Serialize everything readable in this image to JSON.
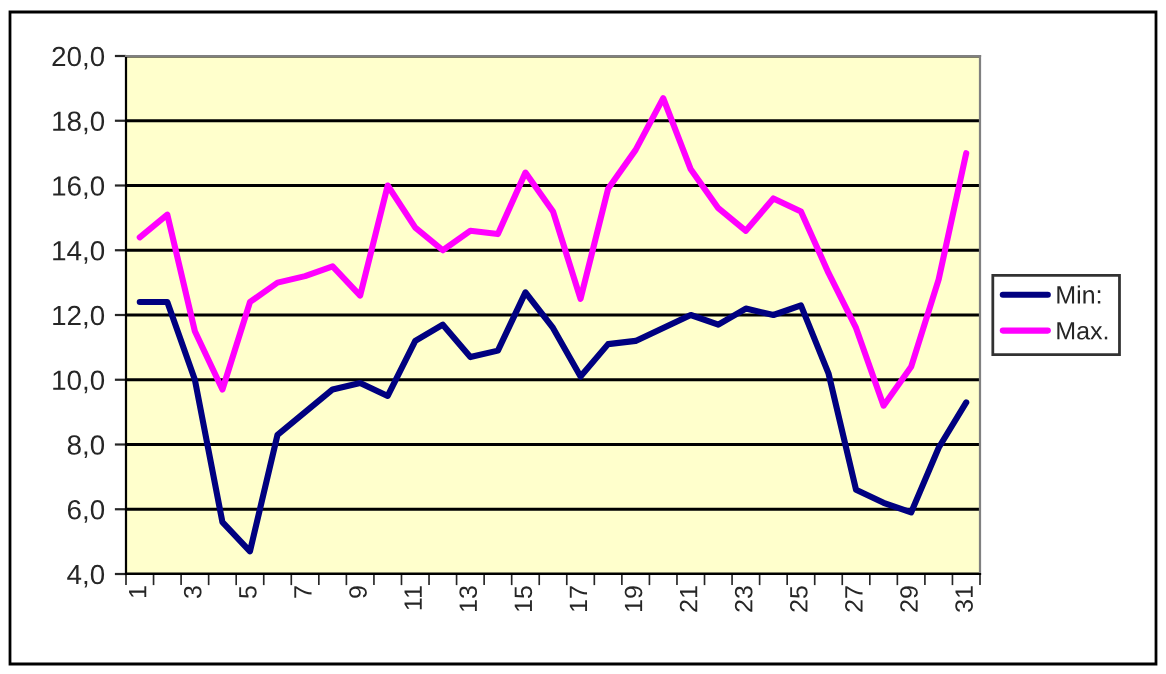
{
  "chart_data": {
    "type": "line",
    "categories": [
      "1",
      null,
      "3",
      null,
      "5",
      null,
      "7",
      null,
      "9",
      null,
      "11",
      null,
      "13",
      null,
      "15",
      null,
      "17",
      null,
      "19",
      null,
      "21",
      null,
      "23",
      null,
      "25",
      null,
      "27",
      null,
      "29",
      null,
      "31"
    ],
    "series": [
      {
        "name": "Min:",
        "color": "#000080",
        "values": [
          12.4,
          12.4,
          10.0,
          5.6,
          4.7,
          8.3,
          9.0,
          9.7,
          9.9,
          9.5,
          11.2,
          11.7,
          10.7,
          10.9,
          12.7,
          11.6,
          10.1,
          11.1,
          11.2,
          11.6,
          12.0,
          11.7,
          12.2,
          12.0,
          12.3,
          10.2,
          6.6,
          6.2,
          5.9,
          7.9,
          9.3
        ]
      },
      {
        "name": "Max.",
        "color": "#ff00ff",
        "values": [
          14.4,
          15.1,
          11.5,
          9.7,
          12.4,
          13.0,
          13.2,
          13.5,
          12.6,
          16.0,
          14.7,
          14.0,
          14.6,
          14.5,
          16.4,
          15.2,
          12.5,
          15.9,
          17.1,
          18.7,
          16.5,
          15.3,
          14.6,
          15.6,
          15.2,
          13.3,
          11.6,
          9.2,
          10.4,
          13.1,
          17.0
        ]
      }
    ],
    "ylim": [
      4,
      20
    ],
    "yticks": [
      {
        "value": 4,
        "label": "4,0"
      },
      {
        "value": 6,
        "label": "6,0"
      },
      {
        "value": 8,
        "label": "8,0"
      },
      {
        "value": 10,
        "label": "10,0"
      },
      {
        "value": 12,
        "label": "12,0"
      },
      {
        "value": 14,
        "label": "14,0"
      },
      {
        "value": 16,
        "label": "16,0"
      },
      {
        "value": 18,
        "label": "18,0"
      },
      {
        "value": 20,
        "label": "20,0"
      }
    ],
    "grid": "y",
    "legend": "right",
    "marker": "none",
    "line_style": "solid"
  }
}
